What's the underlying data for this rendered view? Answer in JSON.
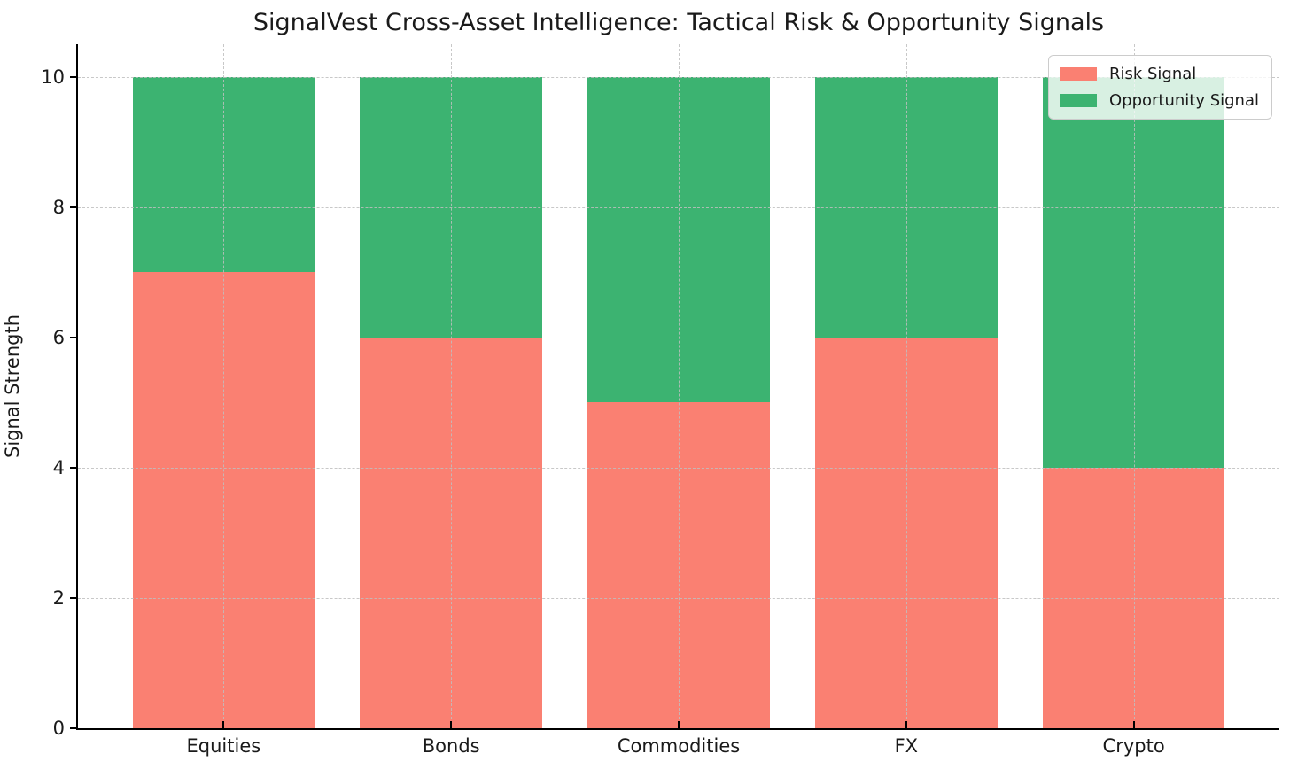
{
  "chart_data": {
    "type": "bar",
    "stacked": true,
    "title": "SignalVest Cross-Asset Intelligence: Tactical Risk & Opportunity Signals",
    "xlabel": "",
    "ylabel": "Signal Strength",
    "categories": [
      "Equities",
      "Bonds",
      "Commodities",
      "FX",
      "Crypto"
    ],
    "series": [
      {
        "name": "Risk Signal",
        "color": "#FA8072",
        "values": [
          7,
          6,
          5,
          6,
          4
        ]
      },
      {
        "name": "Opportunity Signal",
        "color": "#3CB371",
        "values": [
          3,
          4,
          5,
          4,
          6
        ]
      }
    ],
    "stack_totals": [
      10,
      10,
      10,
      10,
      10
    ],
    "ylim": [
      0,
      10.5
    ],
    "yticks": [
      "0",
      "2",
      "4",
      "6",
      "8",
      "10"
    ],
    "ytick_values": [
      0,
      2,
      4,
      6,
      8,
      10
    ],
    "grid": "dashed, horizontal and vertical, drawn over bars",
    "legend_position": "upper right",
    "legend_entries": [
      "Risk Signal",
      "Opportunity Signal"
    ]
  }
}
